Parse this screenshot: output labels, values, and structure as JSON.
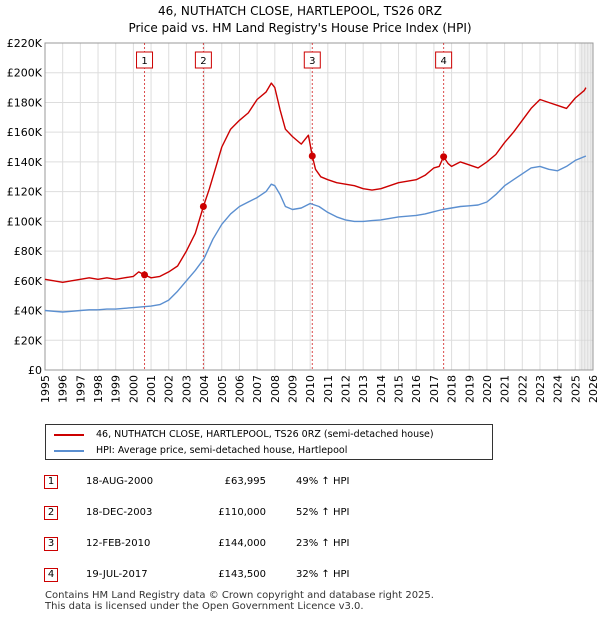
{
  "chart_data": {
    "type": "line",
    "title": "46, NUTHATCH CLOSE, HARTLEPOOL, TS26 0RZ",
    "subtitle": "Price paid vs. HM Land Registry's House Price Index (HPI)",
    "xlim": [
      1995,
      2026
    ],
    "ylim": [
      0,
      220000
    ],
    "x_ticks": [
      "1995",
      "1996",
      "1997",
      "1998",
      "1999",
      "2000",
      "2001",
      "2002",
      "2003",
      "2004",
      "2005",
      "2006",
      "2007",
      "2008",
      "2009",
      "2010",
      "2011",
      "2012",
      "2013",
      "2014",
      "2015",
      "2016",
      "2017",
      "2018",
      "2019",
      "2020",
      "2021",
      "2022",
      "2023",
      "2024",
      "2025",
      "2026"
    ],
    "y_ticks": [
      {
        "value": 0,
        "label": "£0"
      },
      {
        "value": 20000,
        "label": "£20K"
      },
      {
        "value": 40000,
        "label": "£40K"
      },
      {
        "value": 60000,
        "label": "£60K"
      },
      {
        "value": 80000,
        "label": "£80K"
      },
      {
        "value": 100000,
        "label": "£100K"
      },
      {
        "value": 120000,
        "label": "£120K"
      },
      {
        "value": 140000,
        "label": "£140K"
      },
      {
        "value": 160000,
        "label": "£160K"
      },
      {
        "value": 180000,
        "label": "£180K"
      },
      {
        "value": 200000,
        "label": "£200K"
      },
      {
        "value": 220000,
        "label": "£220K"
      }
    ],
    "grid": true,
    "forecast_start": 2025.2,
    "series": [
      {
        "name": "46, NUTHATCH CLOSE, HARTLEPOOL, TS26 0RZ (semi-detached house)",
        "color": "#cc0000",
        "x": [
          1995,
          1995.5,
          1996,
          1996.5,
          1997,
          1997.5,
          1998,
          1998.5,
          1999,
          1999.5,
          2000,
          2000.3,
          2000.63,
          2001,
          2001.5,
          2002,
          2002.5,
          2003,
          2003.5,
          2003.96,
          2004.3,
          2004.7,
          2005,
          2005.5,
          2006,
          2006.5,
          2007,
          2007.5,
          2007.8,
          2008,
          2008.3,
          2008.6,
          2009,
          2009.5,
          2009.9,
          2010.12,
          2010.3,
          2010.6,
          2011,
          2011.5,
          2012,
          2012.5,
          2013,
          2013.5,
          2014,
          2014.5,
          2015,
          2015.5,
          2016,
          2016.5,
          2017,
          2017.3,
          2017.55,
          2017.8,
          2018,
          2018.5,
          2019,
          2019.5,
          2020,
          2020.5,
          2021,
          2021.5,
          2022,
          2022.5,
          2023,
          2023.5,
          2024,
          2024.5,
          2025,
          2025.5,
          2025.6
        ],
        "values": [
          61000,
          60000,
          59000,
          60000,
          61000,
          62000,
          61000,
          62000,
          61000,
          62000,
          63000,
          66000,
          63995,
          62000,
          63000,
          66000,
          70000,
          80000,
          92000,
          110000,
          122000,
          138000,
          150000,
          162000,
          168000,
          173000,
          182000,
          187000,
          193000,
          190000,
          175000,
          162000,
          157000,
          152000,
          158000,
          144000,
          135000,
          130000,
          128000,
          126000,
          125000,
          124000,
          122000,
          121000,
          122000,
          124000,
          126000,
          127000,
          128000,
          131000,
          136000,
          137000,
          143500,
          139000,
          137000,
          140000,
          138000,
          136000,
          140000,
          145000,
          153000,
          160000,
          168000,
          176000,
          182000,
          180000,
          178000,
          176000,
          183000,
          188000,
          190000
        ]
      },
      {
        "name": "HPI: Average price, semi-detached house, Hartlepool",
        "color": "#5b8fd0",
        "x": [
          1995,
          1995.5,
          1996,
          1996.5,
          1997,
          1997.5,
          1998,
          1998.5,
          1999,
          1999.5,
          2000,
          2000.5,
          2001,
          2001.5,
          2002,
          2002.5,
          2003,
          2003.5,
          2004,
          2004.5,
          2005,
          2005.5,
          2006,
          2006.5,
          2007,
          2007.5,
          2007.8,
          2008,
          2008.3,
          2008.6,
          2009,
          2009.5,
          2010,
          2010.5,
          2011,
          2011.5,
          2012,
          2012.5,
          2013,
          2013.5,
          2014,
          2014.5,
          2015,
          2015.5,
          2016,
          2016.5,
          2017,
          2017.5,
          2018,
          2018.5,
          2019,
          2019.5,
          2020,
          2020.5,
          2021,
          2021.5,
          2022,
          2022.5,
          2023,
          2023.5,
          2024,
          2024.5,
          2025,
          2025.6
        ],
        "values": [
          40000,
          39500,
          39000,
          39500,
          40000,
          40500,
          40500,
          41000,
          41000,
          41500,
          42000,
          42500,
          43000,
          44000,
          47000,
          53000,
          60000,
          67000,
          75000,
          88000,
          98000,
          105000,
          110000,
          113000,
          116000,
          120000,
          125000,
          124000,
          118000,
          110000,
          108000,
          109000,
          112000,
          110000,
          106000,
          103000,
          101000,
          100000,
          100000,
          100500,
          101000,
          102000,
          103000,
          103500,
          104000,
          105000,
          106500,
          108000,
          109000,
          110000,
          110500,
          111000,
          113000,
          118000,
          124000,
          128000,
          132000,
          136000,
          137000,
          135000,
          134000,
          137000,
          141000,
          144000
        ]
      }
    ],
    "sales": [
      {
        "num": "1",
        "x": 2000.63,
        "value": 63995,
        "date": "18-AUG-2000",
        "price": "£63,995",
        "hpi": "49% ↑ HPI"
      },
      {
        "num": "2",
        "x": 2003.96,
        "value": 110000,
        "date": "18-DEC-2003",
        "price": "£110,000",
        "hpi": "52% ↑ HPI"
      },
      {
        "num": "3",
        "x": 2010.12,
        "value": 144000,
        "date": "12-FEB-2010",
        "price": "£144,000",
        "hpi": "23% ↑ HPI"
      },
      {
        "num": "4",
        "x": 2017.55,
        "value": 143500,
        "date": "19-JUL-2017",
        "price": "£143,500",
        "hpi": "32% ↑ HPI"
      }
    ]
  },
  "legend": {
    "property": "46, NUTHATCH CLOSE, HARTLEPOOL, TS26 0RZ (semi-detached house)",
    "hpi": "HPI: Average price, semi-detached house, Hartlepool"
  },
  "footer": {
    "line1": "Contains HM Land Registry data © Crown copyright and database right 2025.",
    "line2": "This data is licensed under the Open Government Licence v3.0."
  },
  "colors": {
    "property": "#cc0000",
    "hpi": "#5b8fd0",
    "grid": "#dddddd",
    "forecast": "#eeeeee"
  }
}
